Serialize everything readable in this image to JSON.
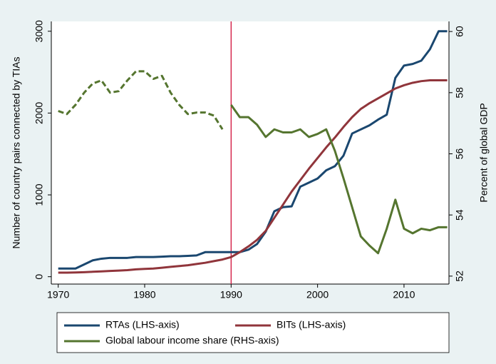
{
  "chart_data": {
    "type": "line",
    "y_label": "Number of country pairs connected by TIAs",
    "y2_label": "Percent of global GDP",
    "x": [
      1970,
      1971,
      1972,
      1973,
      1974,
      1975,
      1976,
      1977,
      1978,
      1979,
      1980,
      1981,
      1982,
      1983,
      1984,
      1985,
      1986,
      1987,
      1988,
      1989,
      1990,
      1991,
      1992,
      1993,
      1994,
      1995,
      1996,
      1997,
      1998,
      1999,
      2000,
      2001,
      2002,
      2003,
      2004,
      2005,
      2006,
      2007,
      2008,
      2009,
      2010,
      2011,
      2012,
      2013,
      2014,
      2015
    ],
    "xlim": [
      1969.2,
      2015.2
    ],
    "xticks": [
      1970,
      1980,
      1990,
      2000,
      2010
    ],
    "ylim": [
      -90,
      3120
    ],
    "yticks": [
      0,
      1000,
      2000,
      3000
    ],
    "y2lim": [
      51.74,
      60.33
    ],
    "y2ticks": [
      52,
      54,
      56,
      58,
      60
    ],
    "vline": 1990,
    "vline_color": "#d0103a",
    "grid": false,
    "legend": "bottom",
    "series": [
      {
        "name": "RTAs (LHS-axis)",
        "color": "#1a476f",
        "values": [
          100,
          100,
          100,
          150,
          200,
          220,
          230,
          230,
          230,
          240,
          240,
          240,
          245,
          250,
          250,
          255,
          260,
          300,
          300,
          300,
          300,
          300,
          330,
          400,
          550,
          800,
          850,
          860,
          1100,
          1150,
          1200,
          1300,
          1350,
          1480,
          1750,
          1800,
          1850,
          1920,
          1980,
          2430,
          2580,
          2600,
          2640,
          2780,
          3000,
          3000
        ]
      },
      {
        "name": "BITs (LHS-axis)",
        "color": "#90353b",
        "values": [
          50,
          50,
          52,
          55,
          60,
          65,
          70,
          75,
          80,
          90,
          95,
          100,
          110,
          120,
          130,
          140,
          155,
          170,
          190,
          210,
          240,
          300,
          370,
          450,
          560,
          720,
          880,
          1040,
          1180,
          1320,
          1450,
          1580,
          1700,
          1830,
          1950,
          2050,
          2120,
          2180,
          2240,
          2300,
          2340,
          2370,
          2390,
          2400,
          2400,
          2400
        ]
      },
      {
        "name": "Global labour income share (RHS-axis)",
        "color": "#55752f",
        "axis": "y2",
        "dashed_before_vline": true,
        "values": [
          57.4,
          57.3,
          57.6,
          58.0,
          58.3,
          58.4,
          58.0,
          58.05,
          58.4,
          58.7,
          58.7,
          58.45,
          58.55,
          58.0,
          57.6,
          57.3,
          57.35,
          57.35,
          57.25,
          56.8,
          57.6,
          57.2,
          57.2,
          56.95,
          56.55,
          56.8,
          56.7,
          56.7,
          56.8,
          56.55,
          56.65,
          56.8,
          56.1,
          55.2,
          54.25,
          53.3,
          53.0,
          52.75,
          53.55,
          54.5,
          53.55,
          53.4,
          53.55,
          53.5,
          53.6,
          53.6
        ]
      }
    ]
  }
}
